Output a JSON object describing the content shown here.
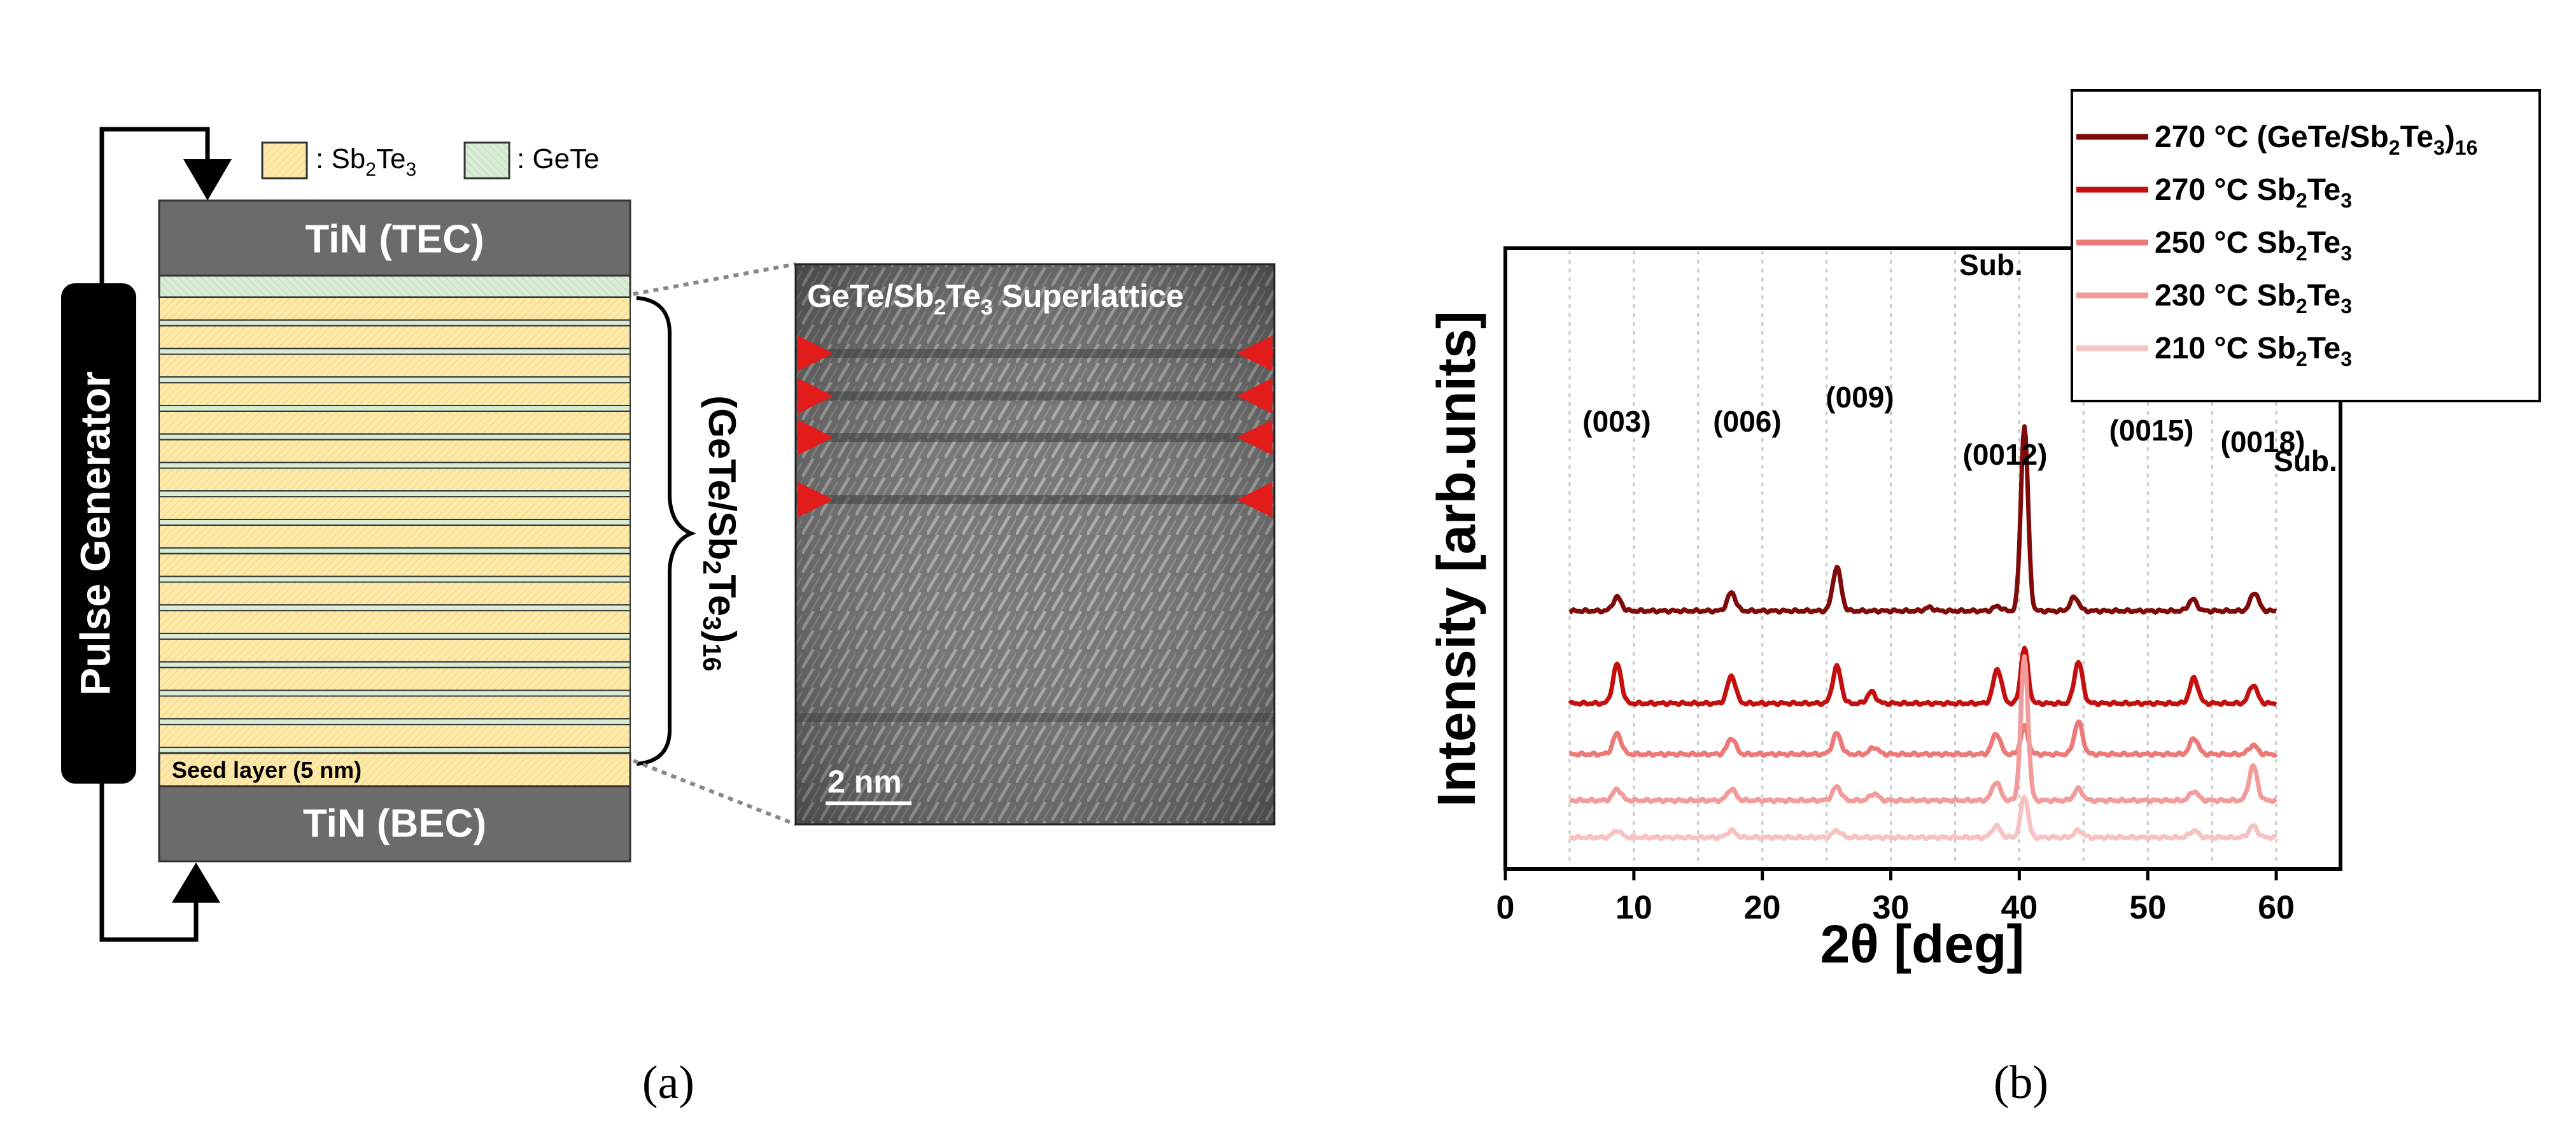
{
  "panel_a": {
    "legend": {
      "sb2te3": {
        "base": ": Sb",
        "sub1": "2",
        "mid": "Te",
        "sub2": "3",
        "color": "#fde9a9"
      },
      "gete": {
        "label": ": GeTe",
        "color": "#d9ecd6"
      }
    },
    "pulse_generator": "Pulse Generator",
    "top_electrode": "TiN (TEC)",
    "bottom_electrode": "TiN (BEC)",
    "seed_layer": "Seed layer (5 nm)",
    "stack_label": {
      "open": "(GeTe/Sb",
      "sub1": "2",
      "mid": "Te",
      "sub2": "3",
      "close": ")",
      "sub3": "16"
    },
    "tem": {
      "title_base": "GeTe/Sb",
      "title_sub1": "2",
      "title_mid": "Te",
      "title_sub2": "3",
      "title_end": " Superlattice",
      "scale_bar": "2 nm"
    },
    "caption": "(a)",
    "colors": {
      "electrode": "#6d6a6a",
      "sb2te3": "#fde9a9",
      "gete": "#d9ecd6",
      "arrow": "#e21b1b"
    }
  },
  "panel_b": {
    "caption": "(b)",
    "peak_labels": [
      "(003)",
      "(006)",
      "(009)",
      "(0012)",
      "(0015)",
      "(0018)"
    ],
    "sub_labels": [
      "Sub.",
      "Sub."
    ],
    "chart_data": {
      "type": "line",
      "xlabel": "2θ [deg]",
      "ylabel": "Intensity [arb.units]",
      "xlim": [
        0,
        65
      ],
      "xticks": [
        "0",
        "10",
        "20",
        "30",
        "40",
        "50",
        "60"
      ],
      "grid_x": [
        5,
        10,
        15,
        20,
        25,
        30,
        35,
        40,
        45,
        50,
        55,
        60
      ],
      "series": [
        {
          "name": "270 °C (GeTe/Sb2Te3)16",
          "label_base": "270 °C (GeTe/Sb",
          "label_sub1": "2",
          "label_mid": "Te",
          "label_sub2": "3",
          "label_close": ")",
          "label_sub3": "16",
          "color": "#7f0a0a",
          "offset": 1.0,
          "baseline": 0.02,
          "peaks": [
            [
              8.7,
              0.06
            ],
            [
              17.6,
              0.08
            ],
            [
              25.8,
              0.19
            ],
            [
              33,
              0.015
            ],
            [
              38.3,
              0.02
            ],
            [
              40.4,
              0.8
            ],
            [
              44.3,
              0.06
            ],
            [
              53.5,
              0.05
            ],
            [
              58.3,
              0.08
            ]
          ]
        },
        {
          "name": "270 °C Sb2Te3",
          "label_base": "270 °C Sb",
          "label_sub1": "2",
          "label_mid": "Te",
          "label_sub2": "3",
          "color": "#c40f0f",
          "offset": 0.62,
          "baseline": 0.0,
          "peaks": [
            [
              8.7,
              0.17
            ],
            [
              17.6,
              0.12
            ],
            [
              25.8,
              0.16
            ],
            [
              28.5,
              0.05
            ],
            [
              38.3,
              0.15
            ],
            [
              40.4,
              0.24
            ],
            [
              44.6,
              0.18
            ],
            [
              53.6,
              0.11
            ],
            [
              58.2,
              0.08
            ]
          ]
        },
        {
          "name": "250 °C Sb2Te3",
          "label_base": "250 °C Sb",
          "label_sub1": "2",
          "label_mid": "Te",
          "label_sub2": "3",
          "color": "#ed7878",
          "offset": 0.4,
          "baseline": 0.0,
          "peaks": [
            [
              8.7,
              0.09
            ],
            [
              17.6,
              0.07
            ],
            [
              25.8,
              0.09
            ],
            [
              28.7,
              0.03
            ],
            [
              38.2,
              0.09
            ],
            [
              40.4,
              0.12
            ],
            [
              44.6,
              0.14
            ],
            [
              53.6,
              0.07
            ],
            [
              58.2,
              0.04
            ]
          ]
        },
        {
          "name": "230 °C Sb2Te3",
          "label_base": "230 °C Sb",
          "label_sub1": "2",
          "label_mid": "Te",
          "label_sub2": "3",
          "color": "#f39a9a",
          "offset": 0.2,
          "baseline": 0.0,
          "peaks": [
            [
              8.7,
              0.05
            ],
            [
              17.6,
              0.05
            ],
            [
              25.8,
              0.06
            ],
            [
              28.7,
              0.03
            ],
            [
              38.2,
              0.08
            ],
            [
              40.4,
              0.62
            ],
            [
              44.6,
              0.05
            ],
            [
              53.6,
              0.04
            ],
            [
              58.2,
              0.15
            ]
          ]
        },
        {
          "name": "210 °C Sb2Te3",
          "label_base": "210 °C Sb",
          "label_sub1": "2",
          "label_mid": "Te",
          "label_sub2": "3",
          "color": "#f7c2c2",
          "offset": 0.04,
          "baseline": 0.0,
          "peaks": [
            [
              8.7,
              0.03
            ],
            [
              17.6,
              0.03
            ],
            [
              25.8,
              0.03
            ],
            [
              38.2,
              0.05
            ],
            [
              40.4,
              0.18
            ],
            [
              44.6,
              0.03
            ],
            [
              53.6,
              0.03
            ],
            [
              58.2,
              0.05
            ]
          ]
        }
      ]
    }
  }
}
